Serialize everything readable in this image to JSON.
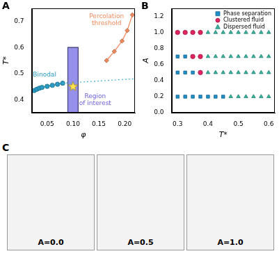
{
  "chart_data": [
    {
      "type": "scatter",
      "panel_label": "A",
      "x_label": "φ",
      "y_label": "T*",
      "xlim": [
        0.02,
        0.22
      ],
      "xticks": [
        0.05,
        {
          "value": 0.1,
          "label": "0.10"
        },
        0.15,
        {
          "value": 0.2,
          "label": "0.20"
        }
      ],
      "ylim": [
        0.35,
        0.75
      ],
      "yticks": [
        0.4,
        0.5,
        0.6,
        0.7
      ],
      "series": [
        {
          "type": "area",
          "color": "#8a84e8",
          "x": [
            0.09,
            0.09,
            0.11,
            0.11
          ],
          "values": [
            0.35,
            0.6,
            0.6,
            0.35
          ]
        },
        {
          "type": "line",
          "color": "#2b9bc4",
          "line_style": "solid",
          "marker": "circle",
          "x": [
            0.025,
            0.03,
            0.035,
            0.04,
            0.05,
            0.06,
            0.07,
            0.08
          ],
          "values": [
            0.435,
            0.44,
            0.444,
            0.447,
            0.451,
            0.455,
            0.459,
            0.463
          ]
        },
        {
          "type": "line",
          "color": "#4fb6d8",
          "line_style": "dotted",
          "x": [
            0.08,
            0.22
          ],
          "values": [
            0.463,
            0.48
          ]
        },
        {
          "type": "line",
          "color": "#f08a5d",
          "line_style": "solid",
          "marker": "diamond",
          "x": [
            0.165,
            0.18,
            0.195,
            0.205,
            0.215
          ],
          "values": [
            0.55,
            0.585,
            0.625,
            0.665,
            0.725
          ]
        },
        {
          "type": "scatter",
          "color": "#ffe34d",
          "marker": "star",
          "x": [
            0.1
          ],
          "values": [
            0.45
          ]
        }
      ],
      "annotations": [
        {
          "text": "Binodal",
          "x": 0.045,
          "y": 0.495,
          "color": "#2b9bc4"
        },
        {
          "text": "Percolation threshold",
          "x": 0.165,
          "y": 0.705,
          "color": "#f08a5d"
        },
        {
          "text": "Region of interest",
          "x": 0.143,
          "y": 0.4,
          "color": "#6a5fd8"
        }
      ]
    },
    {
      "type": "scatter",
      "panel_label": "B",
      "x_label": "T*",
      "y_label": "A",
      "xlim": [
        0.28,
        0.62
      ],
      "xticks": [
        0.3,
        0.4,
        0.5,
        0.6
      ],
      "ylim": [
        0,
        1.3
      ],
      "yticks": [
        {
          "value": 0,
          "label": "0.0"
        },
        0.2,
        0.4,
        0.6,
        0.8,
        {
          "value": 1,
          "label": "1.0"
        },
        1.2
      ],
      "legend": "upper right",
      "series": [
        {
          "name": "Phase separation",
          "color": "#1f8fc9",
          "marker": "square",
          "x": [
            0.3,
            0.325,
            0.35,
            0.375,
            0.4,
            0.425,
            0.45,
            0.3,
            0.325,
            0.35,
            0.3,
            0.325
          ],
          "values": [
            0.2,
            0.2,
            0.2,
            0.2,
            0.2,
            0.2,
            0.2,
            0.5,
            0.5,
            0.5,
            0.7,
            0.7
          ]
        },
        {
          "name": "Clustered fluid",
          "color": "#e0245e",
          "marker": "circle",
          "x": [
            0.375,
            0.35,
            0.375,
            0.3,
            0.325,
            0.35,
            0.375
          ],
          "values": [
            0.5,
            0.7,
            0.7,
            1,
            1,
            1,
            1
          ]
        },
        {
          "name": "Dispersed fluid",
          "color": "#34b5a0",
          "marker": "triangle",
          "x": [
            0.475,
            0.5,
            0.525,
            0.55,
            0.575,
            0.6,
            0.4,
            0.425,
            0.45,
            0.475,
            0.5,
            0.525,
            0.55,
            0.575,
            0.6,
            0.4,
            0.425,
            0.45,
            0.475,
            0.5,
            0.525,
            0.55,
            0.575,
            0.6,
            0.4,
            0.425,
            0.45,
            0.475,
            0.5,
            0.525,
            0.55,
            0.575,
            0.6
          ],
          "values": [
            0.2,
            0.2,
            0.2,
            0.2,
            0.2,
            0.2,
            0.5,
            0.5,
            0.5,
            0.5,
            0.5,
            0.5,
            0.5,
            0.5,
            0.5,
            0.7,
            0.7,
            0.7,
            0.7,
            0.7,
            0.7,
            0.7,
            0.7,
            0.7,
            1,
            1,
            1,
            1,
            1,
            1,
            1,
            1,
            1
          ]
        }
      ]
    }
  ],
  "panel_c": {
    "panel_label": "C",
    "image_labels": [
      "A=0.0",
      "A=0.5",
      "A=1.0"
    ]
  }
}
